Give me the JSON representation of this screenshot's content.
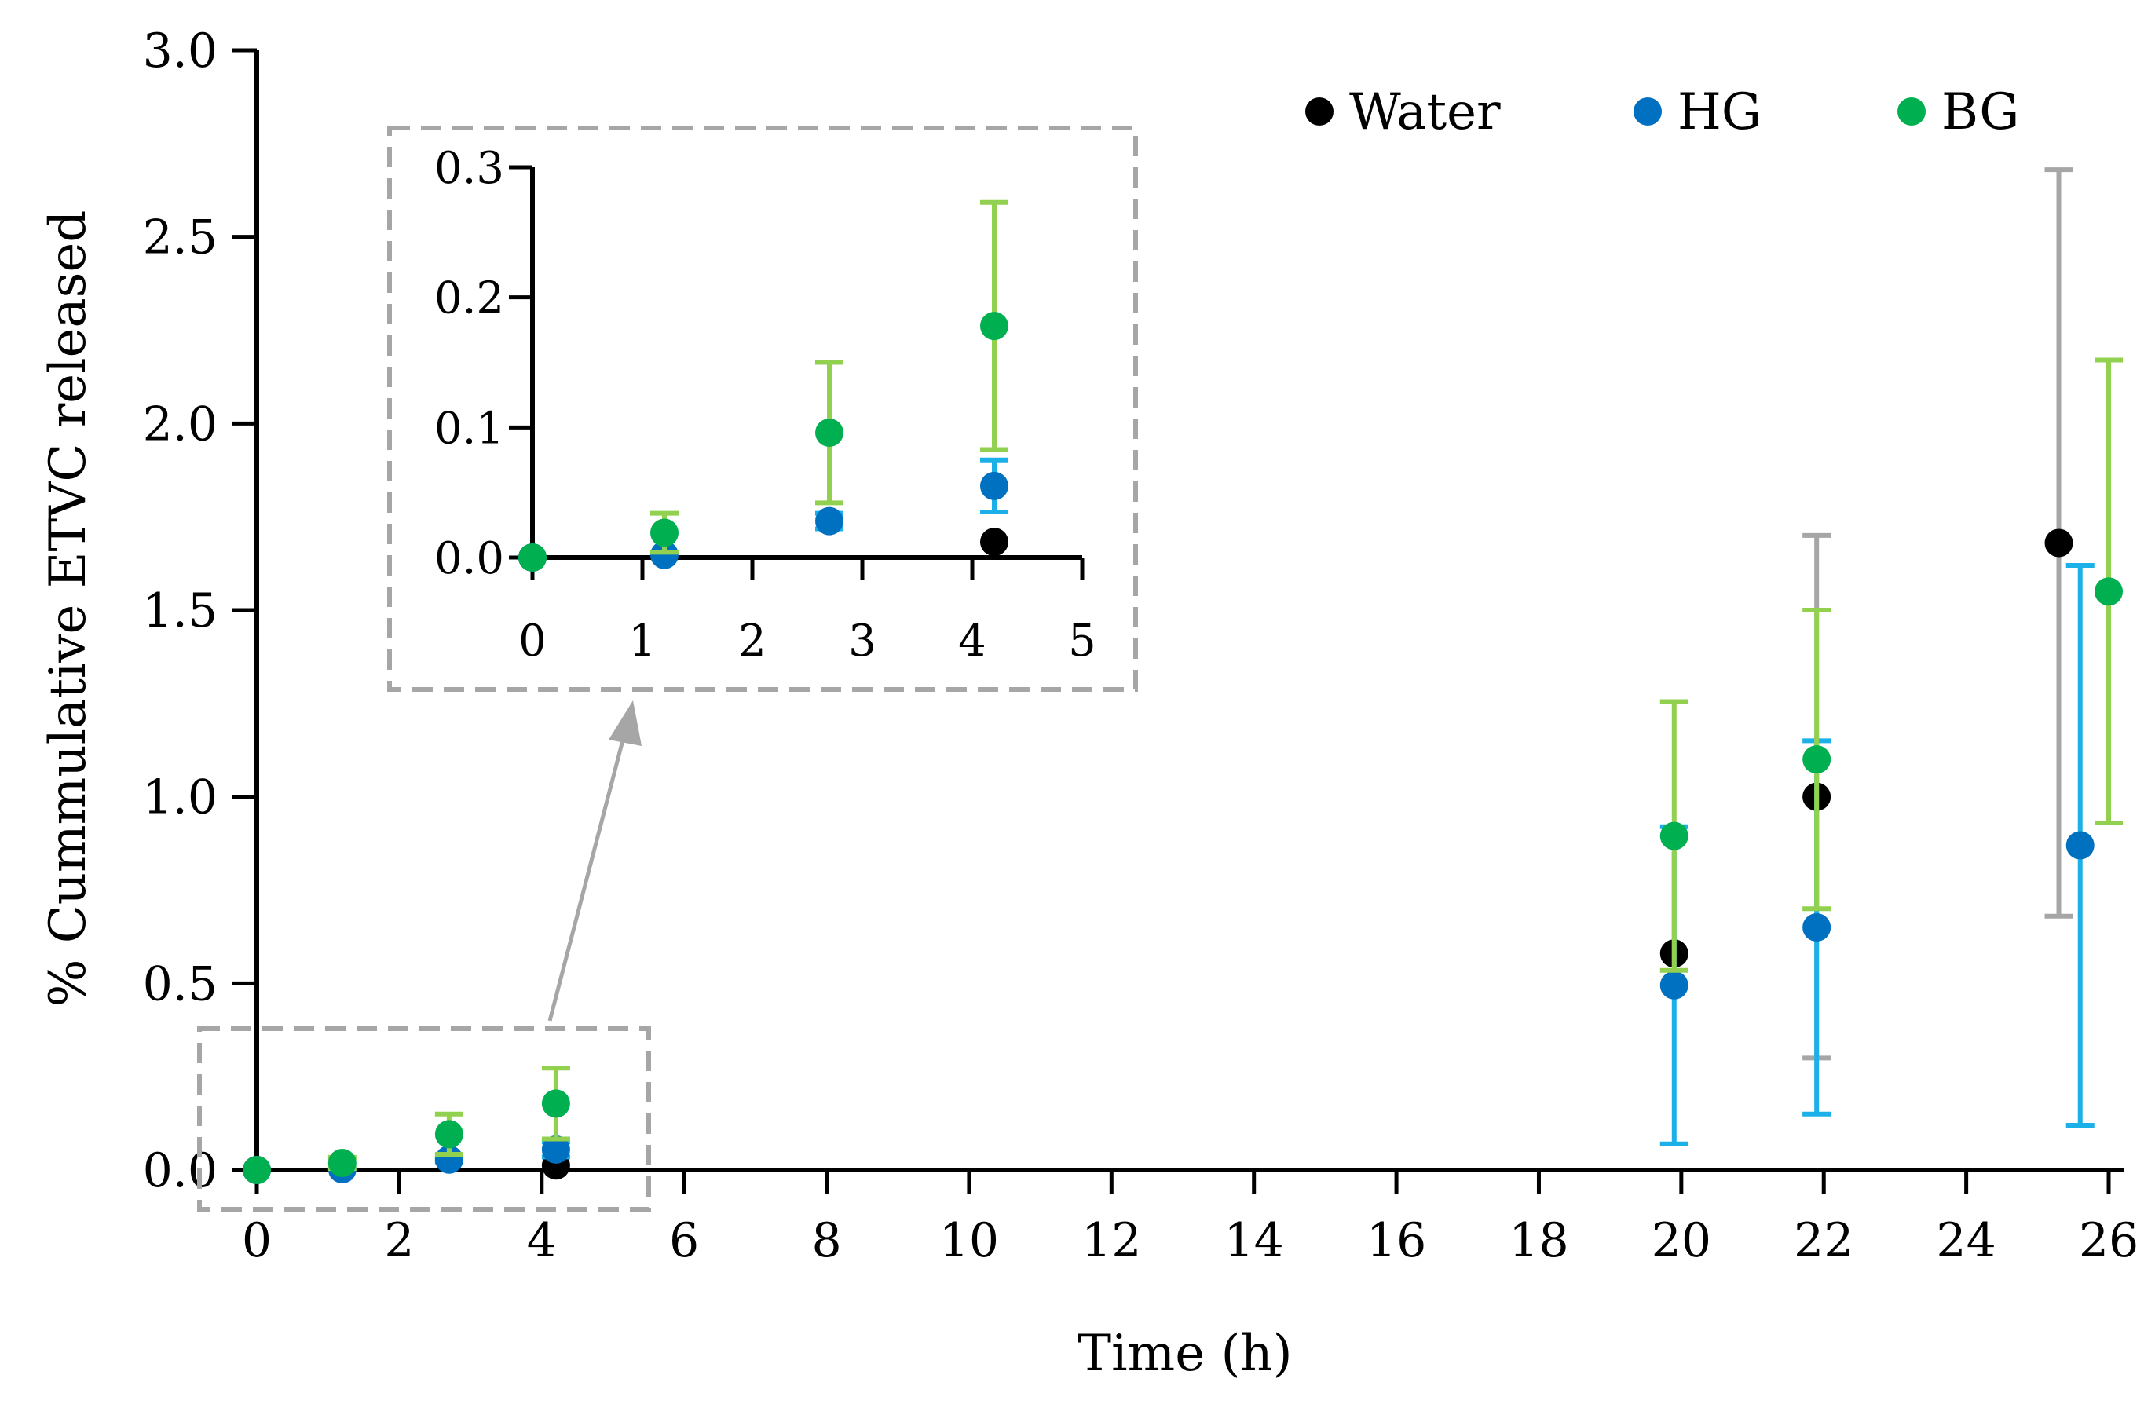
{
  "chart_data": {
    "type": "scatter",
    "title": "",
    "xlabel": "Time (h)",
    "ylabel": "% Cummulative ETVC released",
    "xlim": [
      0,
      26
    ],
    "ylim": [
      0,
      3.0
    ],
    "x_ticks": [
      "0",
      "2",
      "4",
      "6",
      "8",
      "10",
      "12",
      "14",
      "16",
      "18",
      "20",
      "22",
      "24",
      "26"
    ],
    "y_ticks": [
      "0.0",
      "0.5",
      "1.0",
      "1.5",
      "2.0",
      "2.5",
      "3.0"
    ],
    "legend_position": "top-right",
    "series": [
      {
        "name": "Water",
        "color": "#000000",
        "error_color": "#a6a6a6",
        "points": [
          {
            "x": 0,
            "y": 0.0,
            "err_low": 0.0,
            "err_high": 0.0
          },
          {
            "x": 4.2,
            "y": 0.012,
            "err_low": 0.0,
            "err_high": 0.0
          },
          {
            "x": 19.9,
            "y": 0.58,
            "err_low": 0.58,
            "err_high": 0.58
          },
          {
            "x": 21.9,
            "y": 1.0,
            "err_low": 0.3,
            "err_high": 1.7
          },
          {
            "x": 25.3,
            "y": 1.68,
            "err_low": 0.68,
            "err_high": 2.68
          }
        ]
      },
      {
        "name": "HG",
        "color": "#0070c0",
        "error_color": "#1cb0e8",
        "points": [
          {
            "x": 0,
            "y": 0.0,
            "err_low": 0.0,
            "err_high": 0.0
          },
          {
            "x": 1.2,
            "y": 0.002,
            "err_low": 0.0,
            "err_high": 0.0
          },
          {
            "x": 2.7,
            "y": 0.028,
            "err_low": 0.022,
            "err_high": 0.034
          },
          {
            "x": 4.2,
            "y": 0.055,
            "err_low": 0.035,
            "err_high": 0.075
          },
          {
            "x": 19.9,
            "y": 0.495,
            "err_low": 0.07,
            "err_high": 0.92
          },
          {
            "x": 21.9,
            "y": 0.65,
            "err_low": 0.15,
            "err_high": 1.15
          },
          {
            "x": 25.6,
            "y": 0.87,
            "err_low": 0.12,
            "err_high": 1.62
          }
        ]
      },
      {
        "name": "BG",
        "color": "#00b050",
        "error_color": "#92d050",
        "points": [
          {
            "x": 0,
            "y": 0.0,
            "err_low": 0.0,
            "err_high": 0.0
          },
          {
            "x": 1.2,
            "y": 0.019,
            "err_low": 0.004,
            "err_high": 0.034
          },
          {
            "x": 2.7,
            "y": 0.096,
            "err_low": 0.042,
            "err_high": 0.15
          },
          {
            "x": 4.2,
            "y": 0.178,
            "err_low": 0.083,
            "err_high": 0.273
          },
          {
            "x": 19.9,
            "y": 0.895,
            "err_low": 0.535,
            "err_high": 1.255
          },
          {
            "x": 21.9,
            "y": 1.1,
            "err_low": 0.7,
            "err_high": 1.5
          },
          {
            "x": 26.0,
            "y": 1.55,
            "err_low": 0.93,
            "err_high": 2.17
          }
        ]
      }
    ],
    "inset": {
      "description": "zoom of early time points",
      "xlim": [
        0,
        5
      ],
      "ylim": [
        0,
        0.3
      ],
      "x_ticks": [
        "0",
        "1",
        "2",
        "3",
        "4",
        "5"
      ],
      "y_ticks": [
        "0.0",
        "0.1",
        "0.2",
        "0.3"
      ]
    }
  }
}
